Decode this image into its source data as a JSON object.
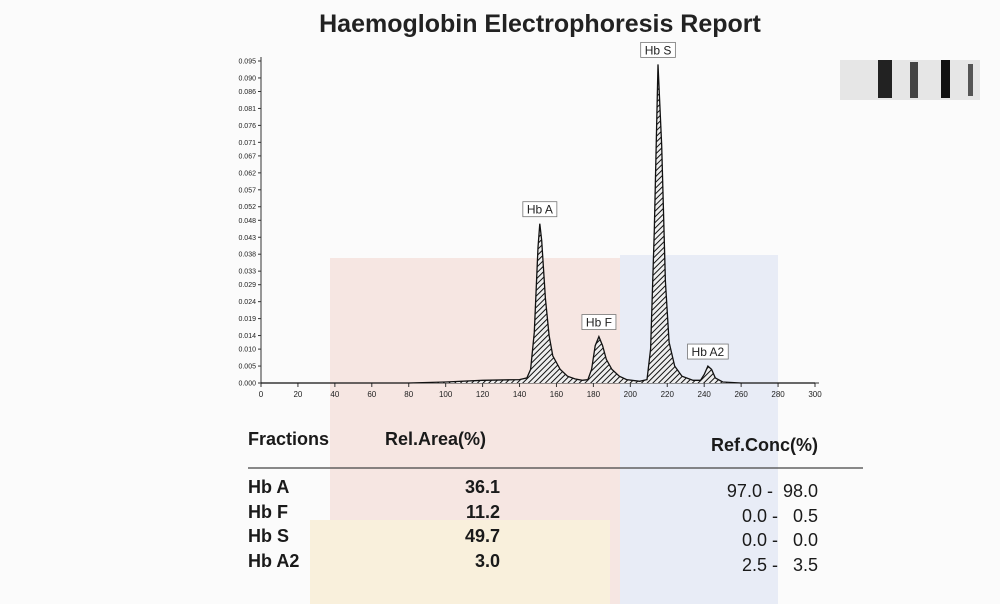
{
  "header": {
    "title": "Haemoglobin Electrophoresis Report"
  },
  "chart_data": {
    "type": "line",
    "x": [
      0,
      20,
      40,
      60,
      80,
      100,
      120,
      140,
      144,
      146,
      148,
      150,
      151,
      152,
      154,
      156,
      158,
      162,
      166,
      170,
      174,
      177,
      179,
      181,
      183,
      185,
      187,
      190,
      194,
      198,
      205,
      209,
      211,
      213,
      215,
      217,
      219,
      221,
      224,
      228,
      234,
      238,
      240,
      242,
      244,
      246,
      250,
      260,
      280,
      300
    ],
    "y": [
      0,
      0,
      0,
      0,
      0,
      0.0003,
      0.0008,
      0.001,
      0.0015,
      0.004,
      0.015,
      0.04,
      0.047,
      0.042,
      0.025,
      0.014,
      0.008,
      0.004,
      0.002,
      0.0012,
      0.0008,
      0.001,
      0.004,
      0.011,
      0.0137,
      0.011,
      0.007,
      0.004,
      0.002,
      0.001,
      0.0005,
      0.001,
      0.01,
      0.045,
      0.094,
      0.07,
      0.03,
      0.012,
      0.005,
      0.002,
      0.0008,
      0.0008,
      0.0025,
      0.005,
      0.004,
      0.0015,
      0.0003,
      0,
      0,
      0
    ],
    "xlim": [
      0,
      300
    ],
    "ylim": [
      0,
      0.095
    ],
    "xticks": [
      0,
      20,
      40,
      60,
      80,
      100,
      120,
      140,
      160,
      180,
      200,
      220,
      240,
      260,
      280,
      300
    ],
    "yticks": [
      {
        "value": 0,
        "label": "0.000"
      },
      0.005,
      {
        "value": 0.01,
        "label": "0.010"
      },
      0.014,
      0.019,
      0.024,
      0.029,
      0.033,
      0.038,
      0.043,
      0.048,
      0.052,
      0.057,
      0.062,
      0.067,
      0.071,
      0.076,
      0.081,
      0.086,
      {
        "value": 0.09,
        "label": "0.090"
      },
      0.095
    ],
    "color": "#111111",
    "annotations": [
      {
        "text": "Hb A",
        "x": 151,
        "y": 0.047
      },
      {
        "text": "Hb F",
        "x": 183,
        "y": 0.0137
      },
      {
        "text": "Hb S",
        "x": 215,
        "y": 0.094
      },
      {
        "text": "Hb A2",
        "x": 242,
        "y": 0.005
      }
    ]
  },
  "table": {
    "headers": [
      "Fractions",
      "Rel.Area(%)",
      "Ref.Conc(%)"
    ],
    "rows": [
      [
        "Hb A",
        "36.1",
        "97.0 -  98.0"
      ],
      [
        "Hb F",
        "11.2",
        "0.0 -   0.5"
      ],
      [
        "Hb S",
        "49.7",
        "0.0 -   0.0"
      ],
      [
        "Hb A2",
        "3.0",
        "2.5 -   3.5"
      ]
    ]
  }
}
